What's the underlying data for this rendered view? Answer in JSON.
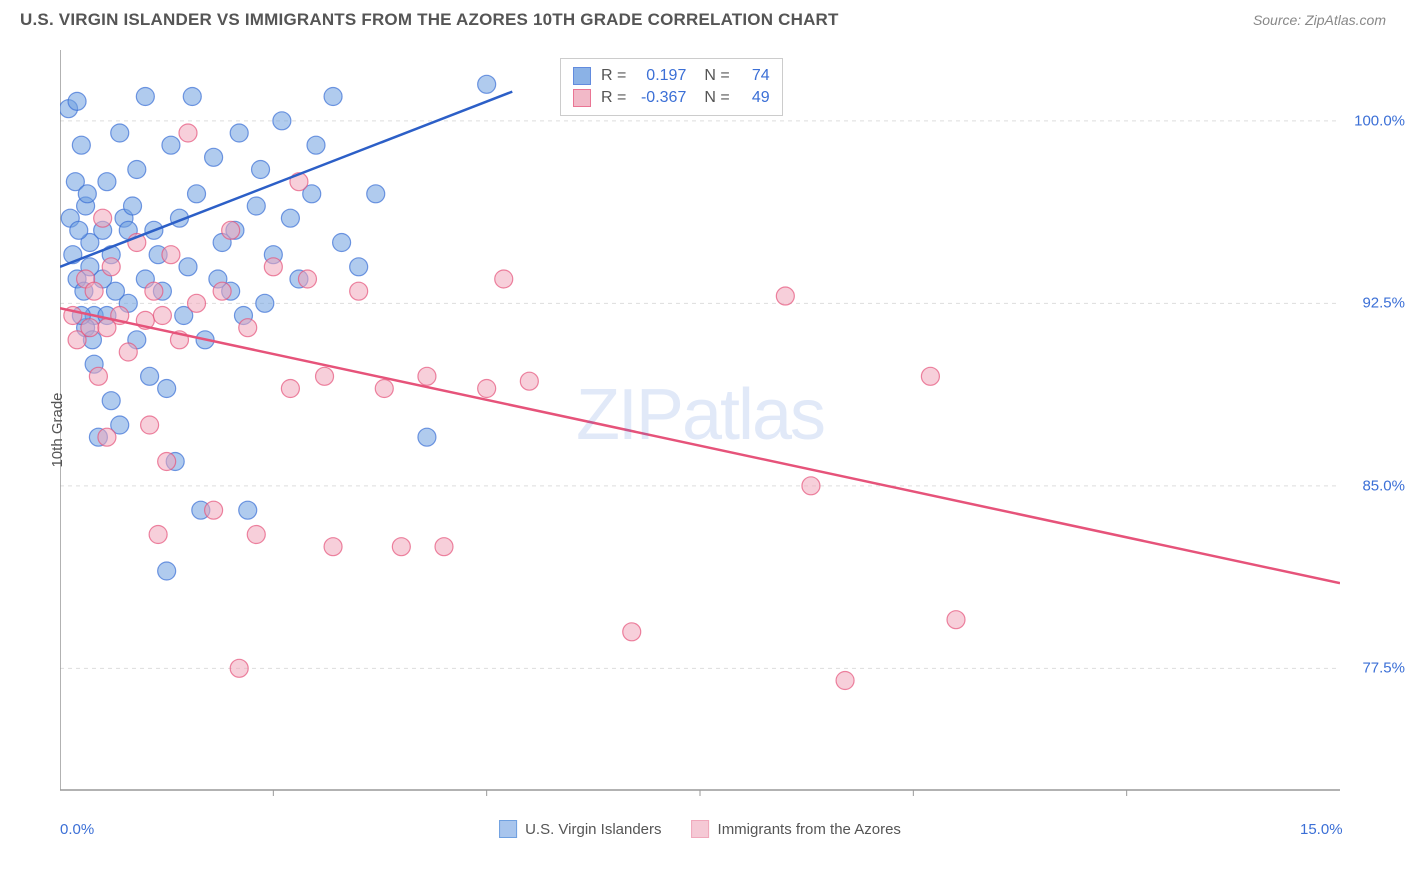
{
  "title": "U.S. VIRGIN ISLANDER VS IMMIGRANTS FROM THE AZORES 10TH GRADE CORRELATION CHART",
  "source": "Source: ZipAtlas.com",
  "ylabel": "10th Grade",
  "watermark": "ZIPatlas",
  "chart": {
    "type": "scatter",
    "xlim": [
      0,
      15
    ],
    "ylim": [
      72.5,
      102.5
    ],
    "xticks": [
      {
        "v": 0,
        "l": "0.0%"
      },
      {
        "v": 15,
        "l": "15.0%"
      }
    ],
    "yticks": [
      {
        "v": 77.5,
        "l": "77.5%"
      },
      {
        "v": 85,
        "l": "85.0%"
      },
      {
        "v": 92.5,
        "l": "92.5%"
      },
      {
        "v": 100,
        "l": "100.0%"
      }
    ],
    "xtick_marks": [
      2.5,
      5,
      7.5,
      10,
      12.5
    ],
    "background": "#ffffff",
    "grid_color": "#dddddd",
    "axis_color": "#999999",
    "marker_radius": 9,
    "marker_opacity": 0.55,
    "line_width": 2.5,
    "series": [
      {
        "name": "U.S. Virgin Islanders",
        "color": "#6fa0e0",
        "stroke": "#3b6fd6",
        "line_color": "#2c5fc7",
        "R": "0.197",
        "N": "74",
        "trend": [
          [
            0.0,
            94.0
          ],
          [
            5.3,
            101.2
          ]
        ],
        "trend_dash_after": 5.3,
        "points": [
          [
            0.1,
            100.5
          ],
          [
            0.2,
            100.8
          ],
          [
            0.25,
            99.0
          ],
          [
            0.35,
            95.0
          ],
          [
            0.3,
            96.5
          ],
          [
            0.4,
            92.0
          ],
          [
            0.5,
            93.5
          ],
          [
            0.5,
            95.5
          ],
          [
            0.55,
            97.5
          ],
          [
            0.6,
            94.5
          ],
          [
            0.7,
            99.5
          ],
          [
            0.75,
            96.0
          ],
          [
            0.8,
            92.5
          ],
          [
            0.9,
            98.0
          ],
          [
            1.0,
            101.0
          ],
          [
            1.1,
            95.5
          ],
          [
            1.2,
            93.0
          ],
          [
            1.25,
            89.0
          ],
          [
            1.3,
            99.0
          ],
          [
            1.4,
            96.0
          ],
          [
            1.5,
            94.0
          ],
          [
            1.55,
            101.0
          ],
          [
            1.6,
            97.0
          ],
          [
            1.7,
            91.0
          ],
          [
            1.8,
            98.5
          ],
          [
            1.9,
            95.0
          ],
          [
            2.0,
            93.0
          ],
          [
            2.1,
            99.5
          ],
          [
            2.2,
            84.0
          ],
          [
            2.3,
            96.5
          ],
          [
            2.4,
            92.5
          ],
          [
            2.5,
            94.5
          ],
          [
            2.6,
            100.0
          ],
          [
            2.7,
            96.0
          ],
          [
            2.8,
            93.5
          ],
          [
            3.0,
            99.0
          ],
          [
            3.2,
            101.0
          ],
          [
            3.3,
            95.0
          ],
          [
            3.5,
            94.0
          ],
          [
            3.7,
            97.0
          ],
          [
            0.3,
            91.5
          ],
          [
            0.4,
            90.0
          ],
          [
            0.45,
            87.0
          ],
          [
            0.6,
            88.5
          ],
          [
            0.65,
            93.0
          ],
          [
            0.35,
            94.0
          ],
          [
            0.8,
            95.5
          ],
          [
            0.9,
            91.0
          ],
          [
            1.0,
            93.5
          ],
          [
            1.05,
            89.5
          ],
          [
            1.15,
            94.5
          ],
          [
            1.35,
            86.0
          ],
          [
            1.45,
            92.0
          ],
          [
            0.2,
            93.5
          ],
          [
            0.25,
            92.0
          ],
          [
            0.15,
            94.5
          ],
          [
            0.55,
            92.0
          ],
          [
            0.7,
            87.5
          ],
          [
            0.85,
            96.5
          ],
          [
            2.05,
            95.5
          ],
          [
            2.15,
            92.0
          ],
          [
            2.35,
            98.0
          ],
          [
            2.95,
            97.0
          ],
          [
            1.65,
            84.0
          ],
          [
            1.85,
            93.5
          ],
          [
            1.25,
            81.5
          ],
          [
            4.3,
            87.0
          ],
          [
            5.0,
            101.5
          ],
          [
            0.12,
            96.0
          ],
          [
            0.18,
            97.5
          ],
          [
            0.22,
            95.5
          ],
          [
            0.28,
            93.0
          ],
          [
            0.32,
            97.0
          ],
          [
            0.38,
            91.0
          ]
        ]
      },
      {
        "name": "Immigrants from the Azores",
        "color": "#f0a8bb",
        "stroke": "#e6537a",
        "line_color": "#e6537a",
        "R": "-0.367",
        "N": "49",
        "trend": [
          [
            0.0,
            92.3
          ],
          [
            15.0,
            81.0
          ]
        ],
        "points": [
          [
            0.15,
            92.0
          ],
          [
            0.2,
            91.0
          ],
          [
            0.3,
            93.5
          ],
          [
            0.35,
            91.5
          ],
          [
            0.4,
            93.0
          ],
          [
            0.5,
            96.0
          ],
          [
            0.55,
            91.5
          ],
          [
            0.6,
            94.0
          ],
          [
            0.7,
            92.0
          ],
          [
            0.8,
            90.5
          ],
          [
            0.9,
            95.0
          ],
          [
            1.0,
            91.8
          ],
          [
            1.1,
            93.0
          ],
          [
            1.2,
            92.0
          ],
          [
            1.3,
            94.5
          ],
          [
            1.4,
            91.0
          ],
          [
            1.5,
            99.5
          ],
          [
            1.6,
            92.5
          ],
          [
            1.8,
            84.0
          ],
          [
            1.9,
            93.0
          ],
          [
            2.0,
            95.5
          ],
          [
            2.1,
            77.5
          ],
          [
            2.2,
            91.5
          ],
          [
            2.3,
            83.0
          ],
          [
            2.5,
            94.0
          ],
          [
            2.7,
            89.0
          ],
          [
            2.8,
            97.5
          ],
          [
            2.9,
            93.5
          ],
          [
            3.1,
            89.5
          ],
          [
            3.2,
            82.5
          ],
          [
            3.5,
            93.0
          ],
          [
            1.05,
            87.5
          ],
          [
            1.25,
            86.0
          ],
          [
            1.15,
            83.0
          ],
          [
            3.8,
            89.0
          ],
          [
            4.0,
            82.5
          ],
          [
            4.3,
            89.5
          ],
          [
            4.5,
            82.5
          ],
          [
            5.0,
            89.0
          ],
          [
            5.2,
            93.5
          ],
          [
            5.5,
            89.3
          ],
          [
            6.7,
            79.0
          ],
          [
            8.5,
            92.8
          ],
          [
            8.8,
            85.0
          ],
          [
            9.2,
            77.0
          ],
          [
            10.2,
            89.5
          ],
          [
            10.5,
            79.5
          ],
          [
            0.45,
            89.5
          ],
          [
            0.55,
            87.0
          ]
        ]
      }
    ]
  },
  "colors": {
    "title": "#555555",
    "source": "#888888",
    "tick": "#3b6fd6",
    "blue_fill": "#a8c5ed",
    "blue_border": "#6fa0e0",
    "pink_fill": "#f5c9d5",
    "pink_border": "#f0a8bb"
  }
}
